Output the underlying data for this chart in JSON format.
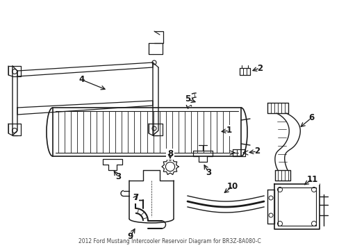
{
  "title": "2012 Ford Mustang Intercooler Reservoir Diagram for BR3Z-8A080-C",
  "background_color": "#ffffff",
  "line_color": "#1a1a1a",
  "fig_width": 4.89,
  "fig_height": 3.6,
  "dpi": 100
}
